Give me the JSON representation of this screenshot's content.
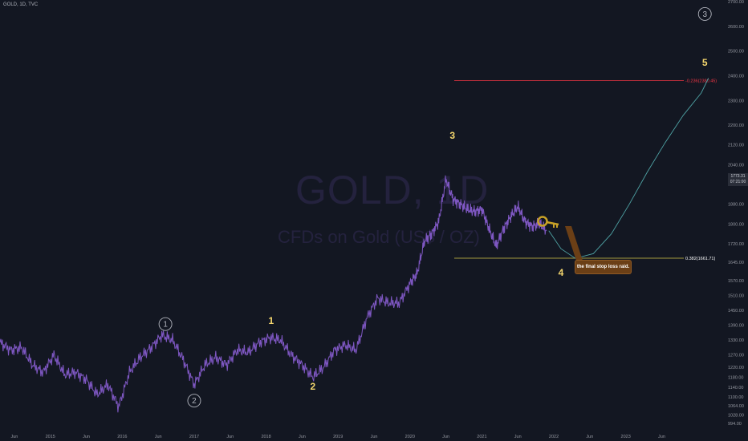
{
  "symbol_title": "GOLD, 1D, TVC",
  "watermark": {
    "symbol": "GOLD, 1D",
    "description": "CFDs on Gold (US$ / OZ)"
  },
  "last_price": {
    "value": "1773.31",
    "countdown": "07:21:00"
  },
  "note": "the final stop loss raid.",
  "icon": "key-icon",
  "colors": {
    "price_line": "#7e57c2",
    "projection": "#4fa3a5",
    "fib_upper": "#f23645",
    "fib_lower": "#d4c44a",
    "wave_label": "#f5d76e",
    "background": "#131722"
  },
  "chart_data": {
    "type": "line",
    "title": "",
    "xlabel": "",
    "ylabel": "",
    "ylim": [
      964,
      2700
    ],
    "xlim": [
      2014.3,
      2024.7
    ],
    "y_ticks": [
      "994.00",
      "1028.00",
      "1064.00",
      "1100.00",
      "1140.00",
      "1180.00",
      "1220.00",
      "1270.00",
      "1330.00",
      "1390.00",
      "1450.00",
      "1510.00",
      "1570.00",
      "1645.00",
      "1720.00",
      "1800.00",
      "1880.00",
      "1960.00",
      "2040.00",
      "2120.00",
      "2200.00",
      "2300.00",
      "2400.00",
      "2500.00",
      "2600.00",
      "2700.00"
    ],
    "x_ticks": [
      {
        "label": "Jun",
        "x": 2014.5
      },
      {
        "label": "2015",
        "x": 2015.0
      },
      {
        "label": "Jun",
        "x": 2015.5
      },
      {
        "label": "2016",
        "x": 2016.0
      },
      {
        "label": "Jun",
        "x": 2016.5
      },
      {
        "label": "2017",
        "x": 2017.0
      },
      {
        "label": "Jun",
        "x": 2017.5
      },
      {
        "label": "2018",
        "x": 2018.0
      },
      {
        "label": "Jun",
        "x": 2018.5
      },
      {
        "label": "2019",
        "x": 2019.0
      },
      {
        "label": "Jun",
        "x": 2019.5
      },
      {
        "label": "2020",
        "x": 2020.0
      },
      {
        "label": "Jun",
        "x": 2020.5
      },
      {
        "label": "2021",
        "x": 2021.0
      },
      {
        "label": "Jun",
        "x": 2021.5
      },
      {
        "label": "2022",
        "x": 2022.0
      },
      {
        "label": "Jun",
        "x": 2022.5
      },
      {
        "label": "2023",
        "x": 2023.0
      },
      {
        "label": "Jun",
        "x": 2023.5
      }
    ],
    "series": [
      {
        "values_x": [
          2014.3,
          2014.45,
          2014.6,
          2014.75,
          2014.9,
          2015.05,
          2015.2,
          2015.35,
          2015.5,
          2015.65,
          2015.8,
          2015.95,
          2016.1,
          2016.25,
          2016.4,
          2016.55,
          2016.7,
          2016.85,
          2017.0,
          2017.15,
          2017.3,
          2017.45,
          2017.6,
          2017.75,
          2017.9,
          2018.05,
          2018.2,
          2018.35,
          2018.5,
          2018.65,
          2018.8,
          2018.95,
          2019.1,
          2019.25,
          2019.4,
          2019.55,
          2019.7,
          2019.85,
          2020.0,
          2020.1,
          2020.2,
          2020.3,
          2020.4,
          2020.5,
          2020.6,
          2020.7,
          2020.8,
          2020.9,
          2021.0,
          2021.1,
          2021.2,
          2021.3,
          2021.4,
          2021.5,
          2021.6,
          2021.7,
          2021.8,
          2021.9
        ],
        "values": [
          1320,
          1290,
          1300,
          1230,
          1200,
          1270,
          1190,
          1200,
          1170,
          1110,
          1150,
          1060,
          1200,
          1260,
          1300,
          1350,
          1330,
          1250,
          1150,
          1230,
          1260,
          1230,
          1290,
          1280,
          1320,
          1340,
          1330,
          1270,
          1230,
          1180,
          1220,
          1290,
          1310,
          1290,
          1420,
          1500,
          1480,
          1480,
          1560,
          1600,
          1730,
          1760,
          1810,
          1980,
          1900,
          1880,
          1860,
          1850,
          1860,
          1780,
          1710,
          1780,
          1830,
          1870,
          1810,
          1790,
          1800,
          1773
        ]
      },
      {
        "values_x": [
          2021.93,
          2022.1,
          2022.3,
          2022.55,
          2022.8,
          2023.05,
          2023.3,
          2023.55,
          2023.8,
          2024.05,
          2024.15
        ],
        "values": [
          1773,
          1700,
          1661,
          1680,
          1760,
          1880,
          2010,
          2130,
          2240,
          2330,
          2390
        ]
      }
    ],
    "annotations": [
      {
        "text": "1",
        "x": 2016.6,
        "y": 1395,
        "style": "circle"
      },
      {
        "text": "2",
        "x": 2017.0,
        "y": 1085,
        "style": "circle"
      },
      {
        "text": "1",
        "x": 2018.07,
        "y": 1395,
        "style": "plain"
      },
      {
        "text": "2",
        "x": 2018.65,
        "y": 1130,
        "style": "plain"
      },
      {
        "text": "3",
        "x": 2020.59,
        "y": 2145,
        "style": "plain"
      },
      {
        "text": "4",
        "x": 2022.1,
        "y": 1590,
        "style": "plain"
      },
      {
        "text": "5",
        "x": 2024.1,
        "y": 2440,
        "style": "plain"
      },
      {
        "text": "3",
        "x": 2024.1,
        "y": 2650,
        "style": "circle"
      }
    ],
    "fib_levels": [
      {
        "label": "-0.236(2380.45)",
        "value": 2380.45
      },
      {
        "label": "0.382(1661.71)",
        "value": 1661.71
      }
    ]
  }
}
